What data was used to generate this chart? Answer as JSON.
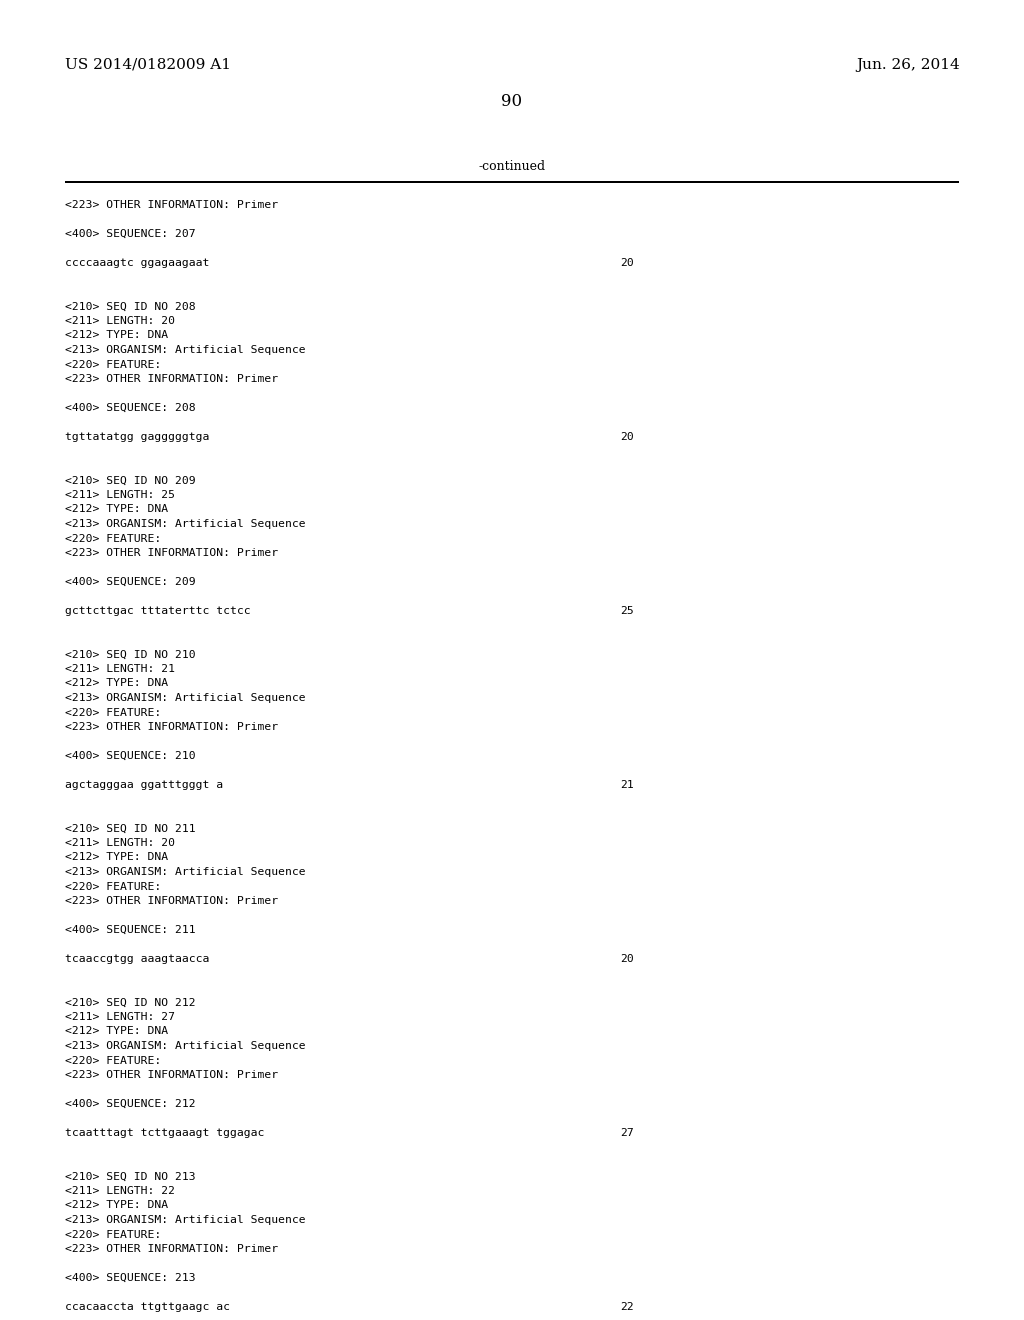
{
  "bg_color": "#ffffff",
  "header_left": "US 2014/0182009 A1",
  "header_right": "Jun. 26, 2014",
  "page_number": "90",
  "continued_text": "-continued",
  "content_lines": [
    {
      "text": "<223> OTHER INFORMATION: Primer",
      "has_num": false
    },
    {
      "text": "",
      "has_num": false
    },
    {
      "text": "<400> SEQUENCE: 207",
      "has_num": false
    },
    {
      "text": "",
      "has_num": false
    },
    {
      "text": "ccccaaagtc ggagaagaat",
      "has_num": true,
      "num": "20"
    },
    {
      "text": "",
      "has_num": false
    },
    {
      "text": "",
      "has_num": false
    },
    {
      "text": "<210> SEQ ID NO 208",
      "has_num": false
    },
    {
      "text": "<211> LENGTH: 20",
      "has_num": false
    },
    {
      "text": "<212> TYPE: DNA",
      "has_num": false
    },
    {
      "text": "<213> ORGANISM: Artificial Sequence",
      "has_num": false
    },
    {
      "text": "<220> FEATURE:",
      "has_num": false
    },
    {
      "text": "<223> OTHER INFORMATION: Primer",
      "has_num": false
    },
    {
      "text": "",
      "has_num": false
    },
    {
      "text": "<400> SEQUENCE: 208",
      "has_num": false
    },
    {
      "text": "",
      "has_num": false
    },
    {
      "text": "tgttatatgg gagggggtga",
      "has_num": true,
      "num": "20"
    },
    {
      "text": "",
      "has_num": false
    },
    {
      "text": "",
      "has_num": false
    },
    {
      "text": "<210> SEQ ID NO 209",
      "has_num": false
    },
    {
      "text": "<211> LENGTH: 25",
      "has_num": false
    },
    {
      "text": "<212> TYPE: DNA",
      "has_num": false
    },
    {
      "text": "<213> ORGANISM: Artificial Sequence",
      "has_num": false
    },
    {
      "text": "<220> FEATURE:",
      "has_num": false
    },
    {
      "text": "<223> OTHER INFORMATION: Primer",
      "has_num": false
    },
    {
      "text": "",
      "has_num": false
    },
    {
      "text": "<400> SEQUENCE: 209",
      "has_num": false
    },
    {
      "text": "",
      "has_num": false
    },
    {
      "text": "gcttcttgac tttaterttc tctcc",
      "has_num": true,
      "num": "25"
    },
    {
      "text": "",
      "has_num": false
    },
    {
      "text": "",
      "has_num": false
    },
    {
      "text": "<210> SEQ ID NO 210",
      "has_num": false
    },
    {
      "text": "<211> LENGTH: 21",
      "has_num": false
    },
    {
      "text": "<212> TYPE: DNA",
      "has_num": false
    },
    {
      "text": "<213> ORGANISM: Artificial Sequence",
      "has_num": false
    },
    {
      "text": "<220> FEATURE:",
      "has_num": false
    },
    {
      "text": "<223> OTHER INFORMATION: Primer",
      "has_num": false
    },
    {
      "text": "",
      "has_num": false
    },
    {
      "text": "<400> SEQUENCE: 210",
      "has_num": false
    },
    {
      "text": "",
      "has_num": false
    },
    {
      "text": "agctagggaa ggatttgggt a",
      "has_num": true,
      "num": "21"
    },
    {
      "text": "",
      "has_num": false
    },
    {
      "text": "",
      "has_num": false
    },
    {
      "text": "<210> SEQ ID NO 211",
      "has_num": false
    },
    {
      "text": "<211> LENGTH: 20",
      "has_num": false
    },
    {
      "text": "<212> TYPE: DNA",
      "has_num": false
    },
    {
      "text": "<213> ORGANISM: Artificial Sequence",
      "has_num": false
    },
    {
      "text": "<220> FEATURE:",
      "has_num": false
    },
    {
      "text": "<223> OTHER INFORMATION: Primer",
      "has_num": false
    },
    {
      "text": "",
      "has_num": false
    },
    {
      "text": "<400> SEQUENCE: 211",
      "has_num": false
    },
    {
      "text": "",
      "has_num": false
    },
    {
      "text": "tcaaccgtgg aaagtaacca",
      "has_num": true,
      "num": "20"
    },
    {
      "text": "",
      "has_num": false
    },
    {
      "text": "",
      "has_num": false
    },
    {
      "text": "<210> SEQ ID NO 212",
      "has_num": false
    },
    {
      "text": "<211> LENGTH: 27",
      "has_num": false
    },
    {
      "text": "<212> TYPE: DNA",
      "has_num": false
    },
    {
      "text": "<213> ORGANISM: Artificial Sequence",
      "has_num": false
    },
    {
      "text": "<220> FEATURE:",
      "has_num": false
    },
    {
      "text": "<223> OTHER INFORMATION: Primer",
      "has_num": false
    },
    {
      "text": "",
      "has_num": false
    },
    {
      "text": "<400> SEQUENCE: 212",
      "has_num": false
    },
    {
      "text": "",
      "has_num": false
    },
    {
      "text": "tcaatttagt tcttgaaagt tggagac",
      "has_num": true,
      "num": "27"
    },
    {
      "text": "",
      "has_num": false
    },
    {
      "text": "",
      "has_num": false
    },
    {
      "text": "<210> SEQ ID NO 213",
      "has_num": false
    },
    {
      "text": "<211> LENGTH: 22",
      "has_num": false
    },
    {
      "text": "<212> TYPE: DNA",
      "has_num": false
    },
    {
      "text": "<213> ORGANISM: Artificial Sequence",
      "has_num": false
    },
    {
      "text": "<220> FEATURE:",
      "has_num": false
    },
    {
      "text": "<223> OTHER INFORMATION: Primer",
      "has_num": false
    },
    {
      "text": "",
      "has_num": false
    },
    {
      "text": "<400> SEQUENCE: 213",
      "has_num": false
    },
    {
      "text": "",
      "has_num": false
    },
    {
      "text": "ccacaaccta ttgttgaagc ac",
      "has_num": true,
      "num": "22"
    }
  ]
}
